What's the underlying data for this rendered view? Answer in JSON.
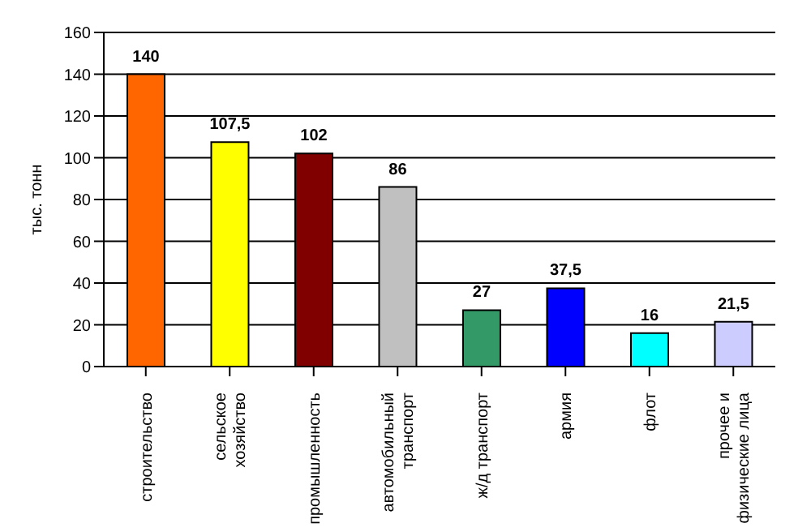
{
  "chart_data": {
    "type": "bar",
    "ylabel": "тыс. тонн",
    "categories": [
      "строительство",
      "сельское\nхозяйство",
      "промышленность",
      "автомобильный\nтранспорт",
      "ж/д транспорт",
      "армия",
      "флот",
      "прочее и\nфизические лица"
    ],
    "values": [
      140,
      107.5,
      102,
      86,
      27,
      37.5,
      16,
      21.5
    ],
    "value_labels": [
      "140",
      "107,5",
      "102",
      "86",
      "27",
      "37,5",
      "16",
      "21,5"
    ],
    "colors": [
      "#ff6600",
      "#ffff00",
      "#800000",
      "#c0c0c0",
      "#339966",
      "#0000ff",
      "#00ffff",
      "#ccccff"
    ],
    "ylim": [
      0,
      160
    ],
    "yticks": [
      0,
      20,
      40,
      60,
      80,
      100,
      120,
      140,
      160
    ],
    "grid": "y"
  }
}
